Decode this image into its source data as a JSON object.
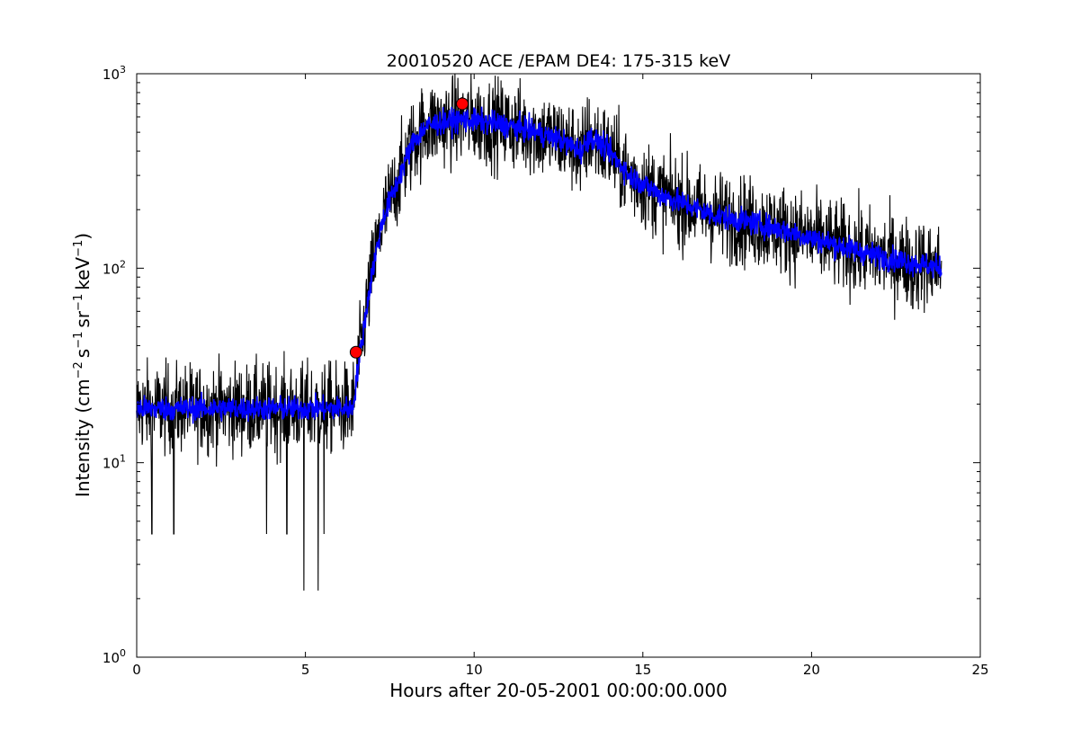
{
  "chart_data": {
    "type": "line",
    "title": "20010520 ACE /EPAM DE4: 175-315 keV",
    "xlabel": "Hours after 20-05-2001 00:00:00.000",
    "ylabel_parts": {
      "prefix": "Intensity (cm",
      "exp1": "−2",
      "s": "s",
      "exp2": "−1",
      "sr": "sr",
      "exp3": "−1",
      "kev": "keV",
      "exp4": "−1",
      "suffix": ")"
    },
    "xlim": [
      0,
      25
    ],
    "ylim": [
      1,
      1000
    ],
    "yscale": "log",
    "grid": false,
    "xticks": [
      0,
      5,
      10,
      15,
      20,
      25
    ],
    "yticks": [
      {
        "value": 1,
        "base": "10",
        "exp": "0"
      },
      {
        "value": 10,
        "base": "10",
        "exp": "1"
      },
      {
        "value": 100,
        "base": "10",
        "exp": "2"
      },
      {
        "value": 1000,
        "base": "10",
        "exp": "3"
      }
    ],
    "profile_knots": [
      [
        0,
        19
      ],
      [
        6.4,
        19
      ],
      [
        6.55,
        30
      ],
      [
        6.8,
        60
      ],
      [
        7.0,
        100
      ],
      [
        7.3,
        180
      ],
      [
        7.8,
        300
      ],
      [
        8.2,
        450
      ],
      [
        8.6,
        540
      ],
      [
        9.0,
        560
      ],
      [
        9.6,
        580
      ],
      [
        10.5,
        560
      ],
      [
        11.5,
        520
      ],
      [
        12.5,
        460
      ],
      [
        13.2,
        400
      ],
      [
        13.4,
        480
      ],
      [
        14.0,
        400
      ],
      [
        14.6,
        300
      ],
      [
        15.5,
        240
      ],
      [
        17.0,
        190
      ],
      [
        19.0,
        160
      ],
      [
        20.5,
        135
      ],
      [
        22.0,
        115
      ],
      [
        23.85,
        100
      ]
    ],
    "dips": [
      {
        "x": 4.95,
        "y": 2.2
      },
      {
        "x": 5.38,
        "y": 2.2
      },
      {
        "x": 1.1,
        "y": 4.3
      },
      {
        "x": 0.45,
        "y": 4.3
      },
      {
        "x": 3.85,
        "y": 4.3
      },
      {
        "x": 4.45,
        "y": 4.3
      },
      {
        "x": 5.55,
        "y": 4.3
      },
      {
        "x": 13.15,
        "y": 250
      },
      {
        "x": 23.0,
        "y": 62
      }
    ],
    "series": [
      {
        "style": "raw",
        "color": "#000000",
        "noise": 0.22
      },
      {
        "style": "smoothed",
        "color": "#0000ff",
        "noise": 0.06
      }
    ],
    "markers": [
      {
        "x": 6.5,
        "y": 37,
        "color": "#ff0000"
      },
      {
        "x": 9.65,
        "y": 700,
        "color": "#ff0000"
      }
    ]
  }
}
